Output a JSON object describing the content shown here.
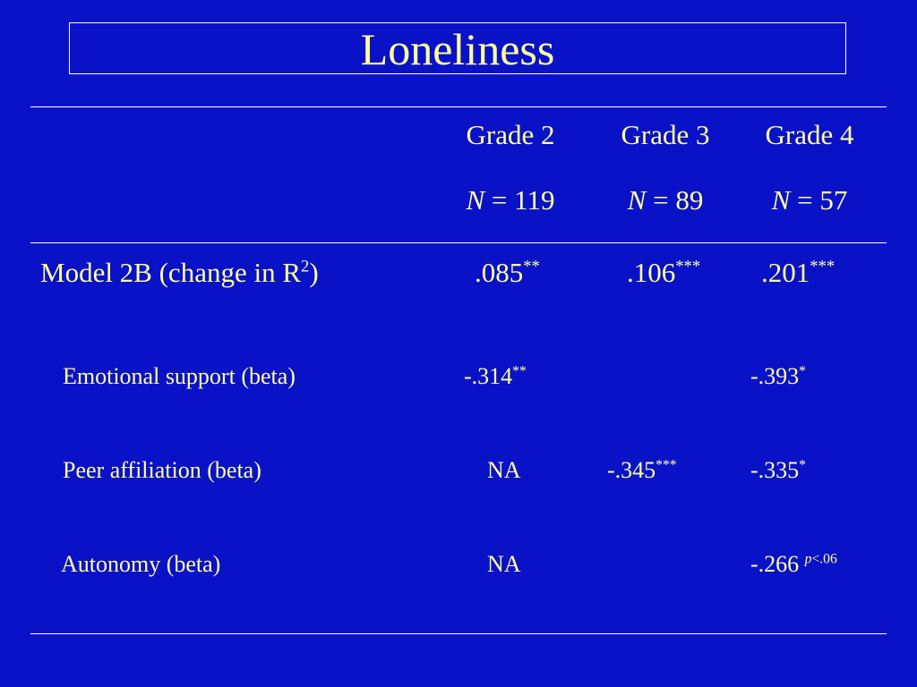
{
  "title": "Loneliness",
  "columns": [
    {
      "grade": "Grade 2",
      "n_label": "N",
      "n_rest": " = 119"
    },
    {
      "grade": "Grade 3",
      "n_label": "N",
      "n_rest": " = 89"
    },
    {
      "grade": "Grade 4",
      "n_label": "N",
      "n_rest": " = 57"
    }
  ],
  "model_row": {
    "label_pre": "Model 2B (change in R",
    "label_sup": "2",
    "label_post": ")",
    "cells": [
      {
        "value": ".085",
        "sup": "**"
      },
      {
        "value": ".106",
        "sup": "***"
      },
      {
        "value": ".201",
        "sup": "***"
      }
    ]
  },
  "rows": [
    {
      "label": "Emotional support (beta)",
      "cells": [
        {
          "value": "-.314",
          "sup": "**"
        },
        {
          "value": "",
          "sup": ""
        },
        {
          "value": "-.393",
          "sup": "*"
        }
      ]
    },
    {
      "label": "Peer affiliation (beta)",
      "cells": [
        {
          "value": "NA",
          "sup": ""
        },
        {
          "value": "-.345",
          "sup": "***"
        },
        {
          "value": "-.335",
          "sup": "*"
        }
      ]
    },
    {
      "label": "Autonomy (beta)",
      "cells": [
        {
          "value": "NA",
          "sup": ""
        },
        {
          "value": "",
          "sup": ""
        },
        {
          "value": "-.266 ",
          "sup_ital": "p",
          "sup": "<.06"
        }
      ]
    }
  ]
}
